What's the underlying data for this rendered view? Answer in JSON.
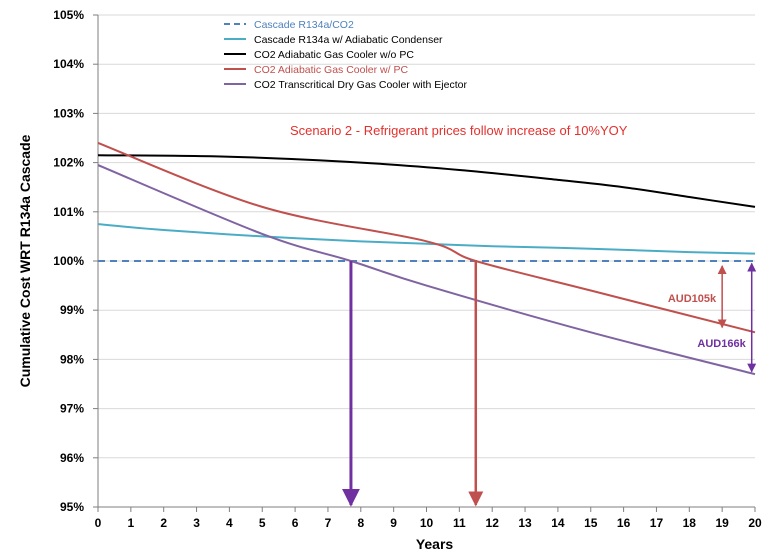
{
  "chart_data": {
    "type": "line",
    "title": "",
    "xlabel": "Years",
    "ylabel": "Cumulative Cost WRT R134a Cascade",
    "xlim": [
      0,
      20
    ],
    "ylim": [
      95,
      105
    ],
    "x_ticks": [
      "0",
      "1",
      "2",
      "3",
      "4",
      "5",
      "6",
      "7",
      "8",
      "9",
      "10",
      "11",
      "12",
      "13",
      "14",
      "15",
      "16",
      "17",
      "18",
      "19",
      "20"
    ],
    "y_ticks": [
      "95%",
      "96%",
      "97%",
      "98%",
      "99%",
      "100%",
      "101%",
      "102%",
      "103%",
      "104%",
      "105%"
    ],
    "grid": "horizontal",
    "legend_position": "top-center",
    "series": [
      {
        "name": "Cascade R134a/CO2",
        "color": "#4f81bd",
        "style": "dashed",
        "x": [
          0,
          20
        ],
        "y": [
          100.0,
          100.0
        ]
      },
      {
        "name": "Cascade R134a w/ Adiabatic Condenser",
        "color": "#4bacc6",
        "style": "solid",
        "x": [
          0,
          2,
          5,
          8,
          10,
          12,
          15,
          18,
          20
        ],
        "y": [
          100.75,
          100.63,
          100.5,
          100.4,
          100.35,
          100.3,
          100.25,
          100.18,
          100.15
        ]
      },
      {
        "name": "CO2 Adiabatic Gas Cooler w/o PC",
        "color": "#000000",
        "style": "solid",
        "x": [
          0,
          4,
          8,
          11,
          14,
          16,
          18,
          20
        ],
        "y": [
          102.15,
          102.12,
          102.0,
          101.85,
          101.65,
          101.5,
          101.3,
          101.1
        ]
      },
      {
        "name": "CO2 Adiabatic Gas Cooler w/ PC",
        "color": "#c0504d",
        "style": "solid",
        "x": [
          0,
          5,
          10,
          11.5,
          15,
          20
        ],
        "y": [
          102.4,
          101.1,
          100.4,
          100.0,
          99.4,
          98.55
        ]
      },
      {
        "name": "CO2 Transcritical Dry Gas Cooler with Ejector",
        "color": "#8064a2",
        "style": "solid",
        "x": [
          0,
          5,
          7.7,
          10,
          15,
          20
        ],
        "y": [
          101.95,
          100.55,
          100.0,
          99.5,
          98.55,
          97.7
        ]
      }
    ],
    "annotations": {
      "scenario": "Scenario 2 - Refrigerant prices follow increase of 10%YOY",
      "gap_red_label": "AUD105k",
      "gap_purple_label": "AUD166k",
      "payback_purple_x": 7.7,
      "payback_red_x": 11.5,
      "gap_red_x": 19.0,
      "gap_purple_x": 19.9,
      "gap_red_range": [
        98.65,
        99.9
      ],
      "gap_purple_range": [
        97.75,
        99.95
      ]
    },
    "colors": {
      "annot_red": "#c0504d",
      "annot_purple": "#7030a0",
      "scenario_text": "#e3312d",
      "grid": "#d9d9d9"
    }
  }
}
